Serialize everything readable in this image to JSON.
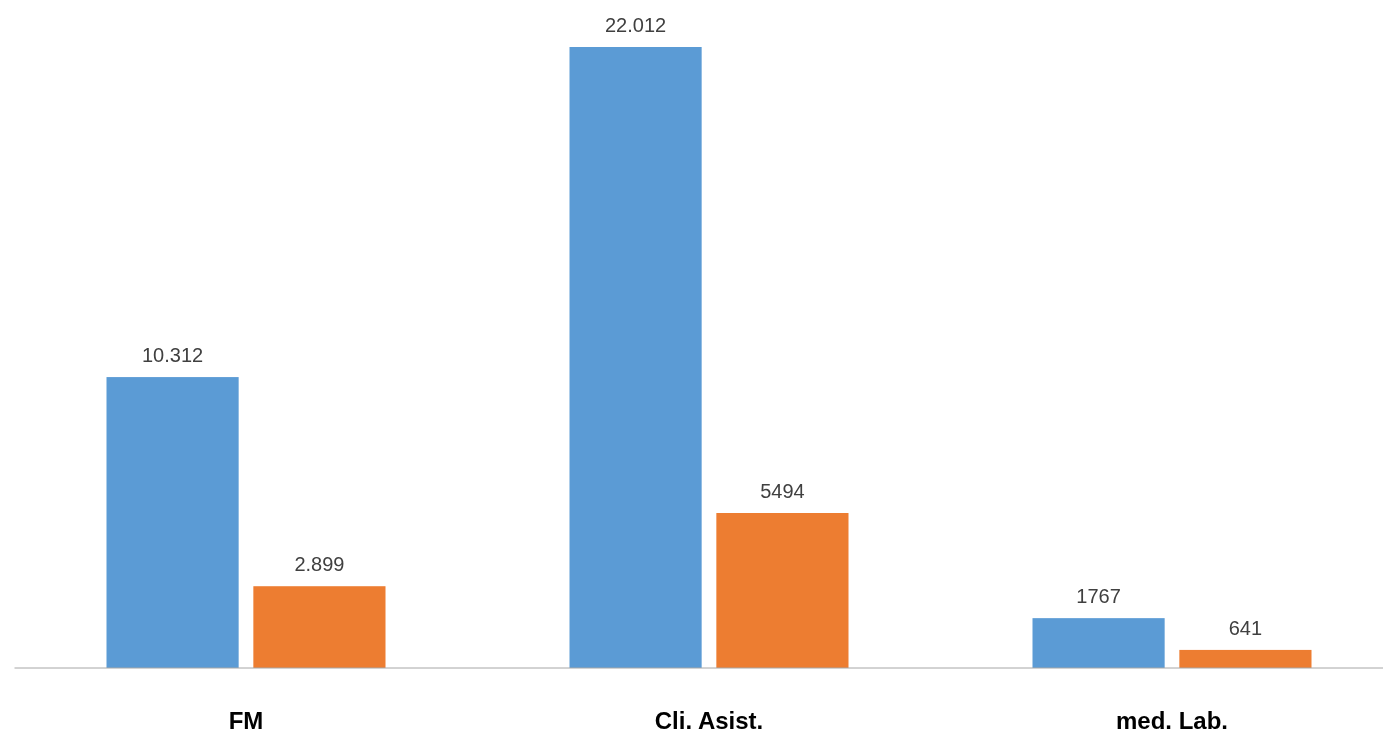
{
  "chart_data": {
    "type": "bar",
    "categories": [
      "FM",
      "Cli. Asist.",
      "med. Lab."
    ],
    "series": [
      {
        "color": "#5b9bd5",
        "values": [
          10312,
          22012,
          1767
        ],
        "value_labels": [
          "10.312",
          "22.012",
          "1767"
        ]
      },
      {
        "color": "#ed7d31",
        "values": [
          2899,
          5494,
          641
        ],
        "value_labels": [
          "2.899",
          "5494",
          "641"
        ]
      }
    ]
  }
}
